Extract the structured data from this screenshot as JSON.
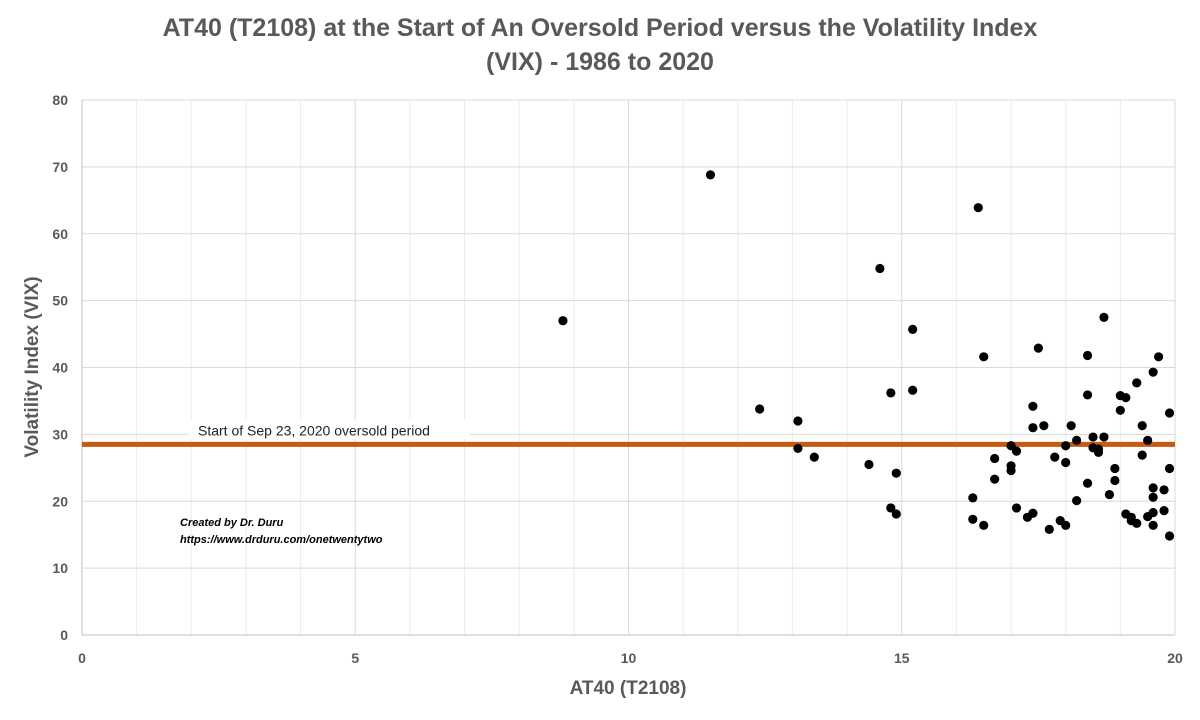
{
  "chart_data": {
    "type": "scatter",
    "title_line1": "AT40 (T2108) at the Start of An Oversold Period versus the Volatility Index",
    "title_line2": "(VIX) - 1986 to 2020",
    "xlabel": "AT40 (T2108)",
    "ylabel": "Volatility Index (VIX)",
    "xlim": [
      0,
      20
    ],
    "ylim": [
      0,
      80
    ],
    "x_major_ticks": [
      0,
      5,
      10,
      15,
      20
    ],
    "x_minor_ticks": [
      1,
      2,
      3,
      4,
      6,
      7,
      8,
      9,
      11,
      12,
      13,
      14,
      16,
      17,
      18,
      19
    ],
    "y_ticks": [
      0,
      10,
      20,
      30,
      40,
      50,
      60,
      70,
      80
    ],
    "grid": true,
    "marker_color": "#000000",
    "points": [
      [
        8.8,
        47.0
      ],
      [
        11.5,
        68.8
      ],
      [
        12.4,
        33.8
      ],
      [
        13.1,
        32.0
      ],
      [
        13.1,
        27.9
      ],
      [
        13.4,
        26.6
      ],
      [
        14.4,
        25.5
      ],
      [
        14.6,
        54.8
      ],
      [
        14.8,
        36.2
      ],
      [
        14.8,
        19.0
      ],
      [
        14.9,
        24.2
      ],
      [
        14.9,
        18.1
      ],
      [
        15.2,
        45.7
      ],
      [
        15.2,
        36.6
      ],
      [
        16.3,
        20.5
      ],
      [
        16.3,
        17.3
      ],
      [
        16.4,
        63.9
      ],
      [
        16.5,
        41.6
      ],
      [
        16.5,
        16.4
      ],
      [
        16.7,
        26.4
      ],
      [
        16.7,
        23.3
      ],
      [
        17.0,
        28.3
      ],
      [
        17.0,
        25.3
      ],
      [
        17.0,
        24.6
      ],
      [
        17.1,
        27.5
      ],
      [
        17.1,
        19.0
      ],
      [
        17.3,
        17.6
      ],
      [
        17.4,
        34.2
      ],
      [
        17.4,
        31.0
      ],
      [
        17.4,
        18.2
      ],
      [
        17.5,
        42.9
      ],
      [
        17.6,
        31.3
      ],
      [
        17.7,
        15.8
      ],
      [
        17.8,
        26.6
      ],
      [
        17.9,
        17.1
      ],
      [
        18.0,
        28.3
      ],
      [
        18.0,
        25.8
      ],
      [
        18.0,
        16.4
      ],
      [
        18.1,
        31.3
      ],
      [
        18.2,
        29.1
      ],
      [
        18.2,
        20.1
      ],
      [
        18.4,
        41.8
      ],
      [
        18.4,
        35.9
      ],
      [
        18.4,
        22.7
      ],
      [
        18.5,
        28.0
      ],
      [
        18.5,
        29.6
      ],
      [
        18.6,
        27.3
      ],
      [
        18.6,
        27.8
      ],
      [
        18.7,
        29.6
      ],
      [
        18.7,
        47.5
      ],
      [
        18.8,
        21.0
      ],
      [
        18.9,
        24.9
      ],
      [
        18.9,
        23.1
      ],
      [
        19.0,
        33.6
      ],
      [
        19.0,
        35.8
      ],
      [
        19.1,
        18.1
      ],
      [
        19.1,
        35.5
      ],
      [
        19.2,
        17.6
      ],
      [
        19.2,
        17.1
      ],
      [
        19.3,
        37.7
      ],
      [
        19.3,
        16.7
      ],
      [
        19.4,
        31.3
      ],
      [
        19.4,
        26.9
      ],
      [
        19.5,
        29.1
      ],
      [
        19.5,
        17.7
      ],
      [
        19.6,
        39.3
      ],
      [
        19.6,
        20.6
      ],
      [
        19.6,
        22.0
      ],
      [
        19.6,
        18.3
      ],
      [
        19.6,
        16.4
      ],
      [
        19.7,
        41.6
      ],
      [
        19.8,
        21.7
      ],
      [
        19.8,
        18.6
      ],
      [
        19.9,
        24.9
      ],
      [
        19.9,
        33.2
      ],
      [
        19.9,
        14.8
      ]
    ],
    "reference_line": {
      "y": 28.5,
      "label": "Start of Sep 23, 2020 oversold period",
      "color": "#C55A11"
    },
    "credit": {
      "line1": "Created by Dr. Duru",
      "line2": "https://www.drduru.com/onetwentytwo"
    }
  }
}
